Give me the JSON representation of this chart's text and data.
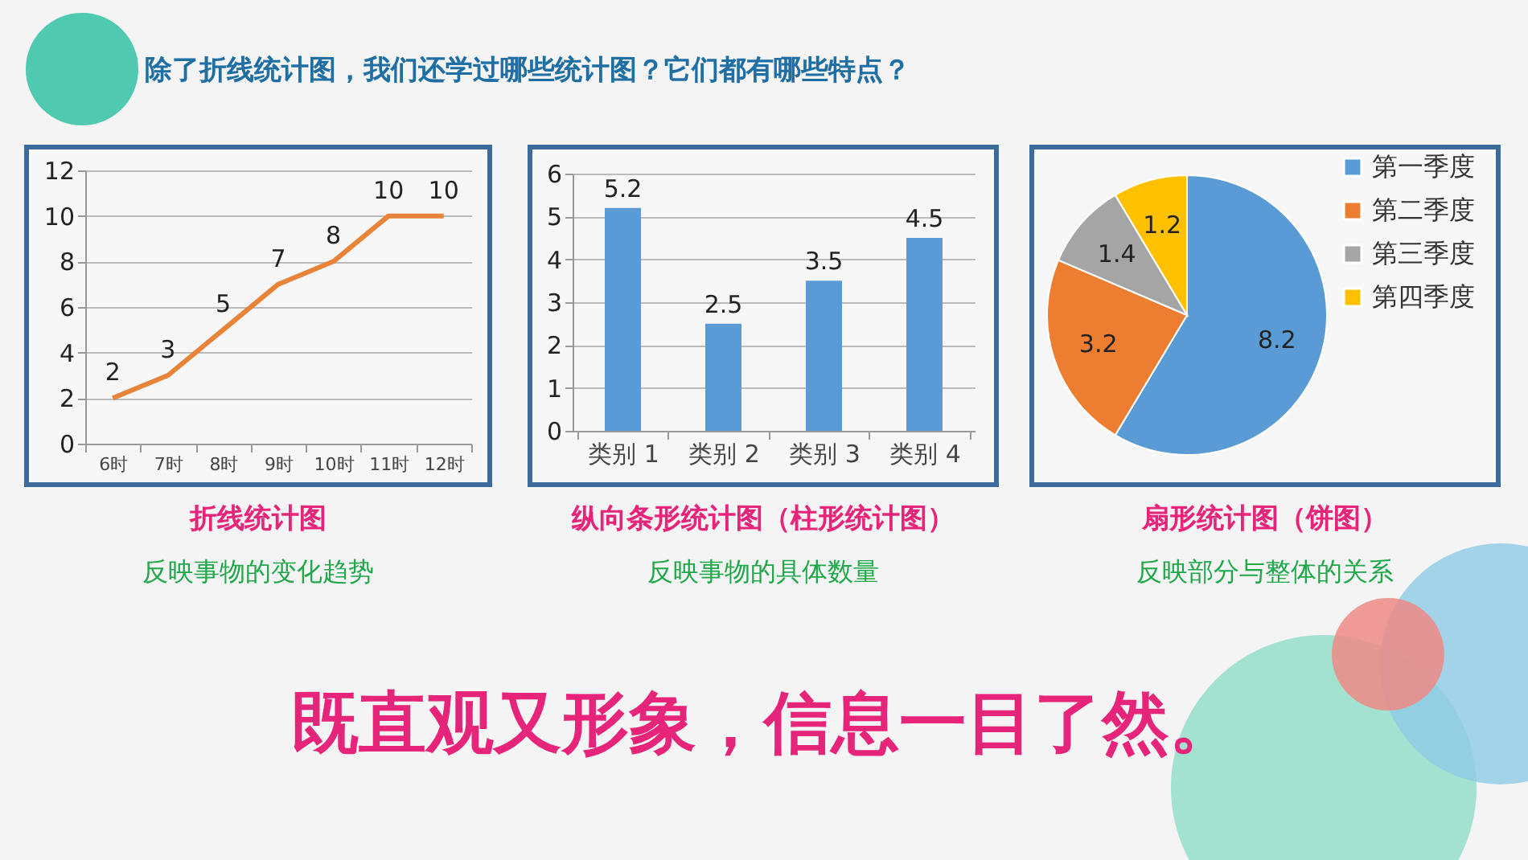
{
  "chart_data": [
    {
      "type": "line",
      "title": "折线统计图",
      "subtitle": "反映事物的变化趋势",
      "annotations": [
        "除了折线统计图，我们还学过哪些统计图？它们都有哪些特点？",
        "既直观又形象，信息一目了然。"
      ],
      "categories": [
        "6时",
        "7时",
        "8时",
        "9时",
        "10时",
        "11时",
        "12时"
      ],
      "values": [
        2,
        3,
        5,
        7,
        8,
        10,
        10
      ],
      "color": "#e8833a",
      "ylim": [
        0,
        12
      ],
      "yticks": [
        0,
        2,
        4,
        6,
        8,
        10,
        12
      ],
      "grid": "y",
      "data_labels": true,
      "marker": "none",
      "line_style": "solid"
    },
    {
      "type": "bar",
      "title": "纵向条形统计图（柱形统计图）",
      "subtitle": "反映事物的具体数量",
      "categories": [
        "类别 1",
        "类别 2",
        "类别 3",
        "类别 4"
      ],
      "values": [
        5.2,
        2.5,
        3.5,
        4.5
      ],
      "color": "#5b9bd5",
      "ylim": [
        0,
        6
      ],
      "yticks": [
        0,
        1,
        2,
        3,
        4,
        5,
        6
      ],
      "grid": "y",
      "data_labels": true
    },
    {
      "type": "pie",
      "title": "扇形统计图（饼图）",
      "subtitle": "反映部分与整体的关系",
      "categories": [
        "第一季度",
        "第二季度",
        "第三季度",
        "第四季度"
      ],
      "values": [
        8.2,
        3.2,
        1.4,
        1.2
      ],
      "colors": [
        "#5b9bd5",
        "#ed7d31",
        "#a5a5a5",
        "#ffc000"
      ],
      "legend": "right",
      "data_labels": true
    }
  ]
}
